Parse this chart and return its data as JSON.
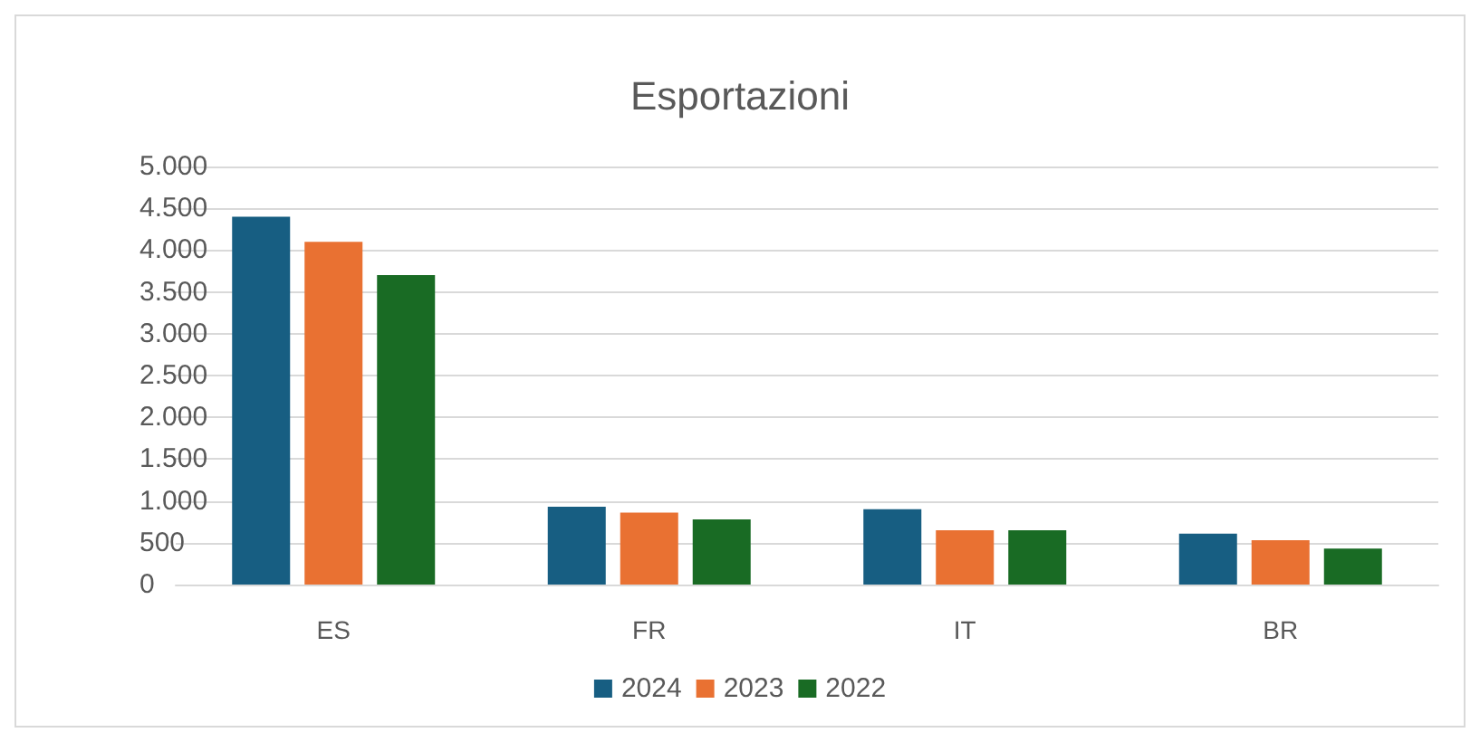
{
  "chart_data": {
    "type": "bar",
    "title": "Esportazioni",
    "categories": [
      "ES",
      "FR",
      "IT",
      "BR"
    ],
    "series": [
      {
        "name": "2024",
        "color": "#175e82",
        "values": [
          4400,
          930,
          900,
          610
        ]
      },
      {
        "name": "2023",
        "color": "#e97132",
        "values": [
          4100,
          860,
          650,
          530
        ]
      },
      {
        "name": "2022",
        "color": "#196b24",
        "values": [
          3700,
          780,
          650,
          430
        ]
      }
    ],
    "ylim": [
      0,
      5000
    ],
    "yticks": [
      0,
      {
        "value": 500,
        "label": "500"
      },
      {
        "value": 1000,
        "label": "1.000"
      },
      {
        "value": 1500,
        "label": "1.500"
      },
      {
        "value": 2000,
        "label": "2.000"
      },
      {
        "value": 2500,
        "label": "2.500"
      },
      {
        "value": 3000,
        "label": "3.000"
      },
      {
        "value": 3500,
        "label": "3.500"
      },
      {
        "value": 4000,
        "label": "4.000"
      },
      {
        "value": 4500,
        "label": "4.500"
      },
      {
        "value": 5000,
        "label": "5.000"
      }
    ],
    "grid": "y",
    "legend": "bottom"
  }
}
